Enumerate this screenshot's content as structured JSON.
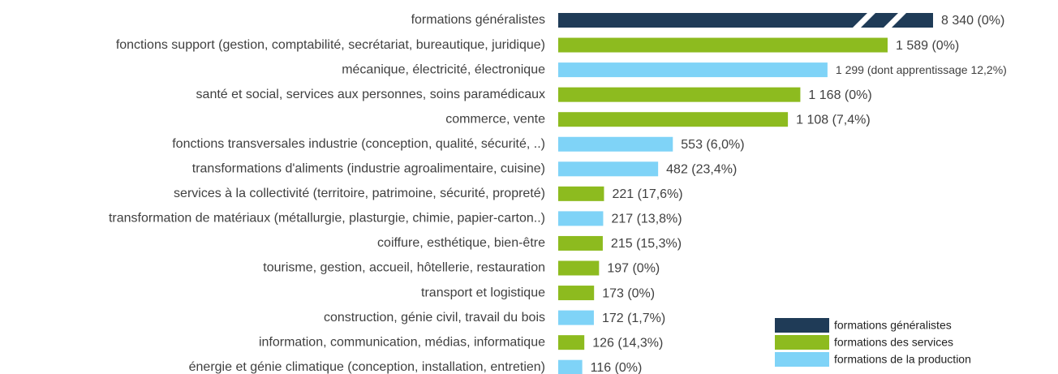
{
  "chart_data": {
    "type": "barh",
    "categories": [
      "formations généralistes",
      "fonctions support (gestion, comptabilité, secrétariat, bureautique, juridique)",
      "mécanique, électricité, électronique",
      "santé et social, services aux personnes, soins paramédicaux",
      "commerce, vente",
      "fonctions transversales industrie (conception, qualité, sécurité, ..)",
      "transformations d'aliments (industrie agroalimentaire, cuisine)",
      "services à la collectivité (territoire, patrimoine, sécurité, propreté)",
      "transformation de matériaux (métallurgie, plasturgie, chimie, papier-carton..)",
      "coiffure, esthétique, bien-être",
      "tourisme, gestion, accueil, hôtellerie, restauration",
      "transport et logistique",
      "construction, génie civil, travail du bois",
      "information, communication, médias, informatique",
      "énergie et génie climatique (conception, installation, entretien)"
    ],
    "series": [
      {
        "name": "formations généralistes",
        "color": "#1f3b57",
        "values": [
          8340,
          null,
          null,
          null,
          null,
          null,
          null,
          null,
          null,
          null,
          null,
          null,
          null,
          null,
          null
        ],
        "value_labels": [
          "8 340 (0%)",
          null,
          null,
          null,
          null,
          null,
          null,
          null,
          null,
          null,
          null,
          null,
          null,
          null,
          null
        ]
      },
      {
        "name": "formations des services",
        "color": "#8dbb1f",
        "values": [
          null,
          1589,
          null,
          1168,
          1108,
          null,
          null,
          221,
          null,
          215,
          197,
          173,
          null,
          126,
          null
        ],
        "value_labels": [
          null,
          "1 589 (0%)",
          null,
          "1 168 (0%)",
          "1 108 (7,4%)",
          null,
          null,
          "221 (17,6%)",
          null,
          "215 (15,3%)",
          "197 (0%)",
          "173 (0%)",
          null,
          "126 (14,3%)",
          null
        ]
      },
      {
        "name": "formations de la production",
        "color": "#7fd3f7",
        "values": [
          null,
          null,
          1299,
          null,
          null,
          553,
          482,
          null,
          217,
          null,
          null,
          null,
          172,
          null,
          116
        ],
        "value_labels": [
          null,
          null,
          "1 299 (dont apprentissage 12,2%)",
          null,
          null,
          "553 (6,0%)",
          "482 (23,4%)",
          null,
          "217 (13,8%)",
          null,
          null,
          null,
          "172 (1,7%)",
          null,
          "116 (0%)"
        ]
      }
    ],
    "axis_break": true
  }
}
